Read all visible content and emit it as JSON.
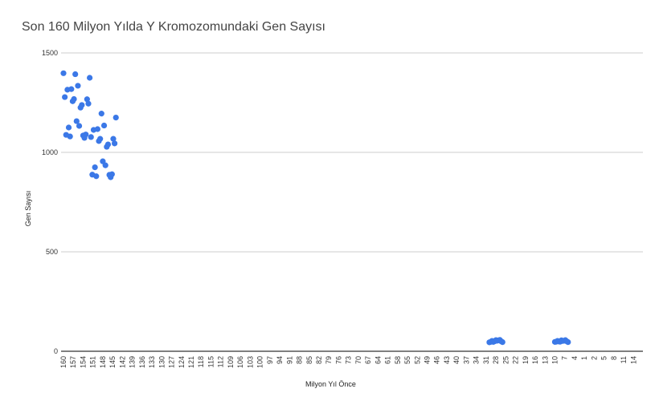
{
  "chart_data": {
    "type": "scatter",
    "title": "Son 160 Milyon Yılda Y Kromozomundaki Gen Sayısı",
    "xlabel": "Milyon Yıl Önce",
    "ylabel": "Gen Sayısı",
    "ylim": [
      0,
      1500
    ],
    "yticks": [
      0,
      500,
      1000,
      1500
    ],
    "grid": true,
    "x_axis_reversed": true,
    "xticks": [
      "160",
      "157",
      "154",
      "151",
      "148",
      "145",
      "142",
      "139",
      "136",
      "133",
      "130",
      "127",
      "124",
      "121",
      "118",
      "115",
      "112",
      "109",
      "106",
      "103",
      "100",
      "97",
      "94",
      "91",
      "88",
      "85",
      "82",
      "79",
      "76",
      "73",
      "70",
      "67",
      "64",
      "61",
      "58",
      "55",
      "52",
      "49",
      "46",
      "43",
      "40",
      "37",
      "34",
      "31",
      "28",
      "25",
      "22",
      "19",
      "16",
      "13",
      "10",
      "7",
      "4",
      "1",
      "2",
      "5",
      "8",
      "11",
      "14"
    ],
    "point_color": "#3b78e7",
    "series": [
      {
        "points": [
          [
            "160",
            1398
          ],
          [
            "159.6",
            1278
          ],
          [
            "159.2",
            1088
          ],
          [
            "158.8",
            1315
          ],
          [
            "158.4",
            1125
          ],
          [
            "158",
            1080
          ],
          [
            "157.6",
            1318
          ],
          [
            "157.2",
            1257
          ],
          [
            "156.8",
            1268
          ],
          [
            "156.4",
            1393
          ],
          [
            "156",
            1157
          ],
          [
            "155.6",
            1335
          ],
          [
            "155.2",
            1133
          ],
          [
            "154.8",
            1225
          ],
          [
            "154.4",
            1238
          ],
          [
            "154",
            1085
          ],
          [
            "153.6",
            1073
          ],
          [
            "153.2",
            1090
          ],
          [
            "152.8",
            1267
          ],
          [
            "152.4",
            1245
          ],
          [
            "152",
            1375
          ],
          [
            "151.6",
            1077
          ],
          [
            "151.2",
            888
          ],
          [
            "150.8",
            1113
          ],
          [
            "150.4",
            925
          ],
          [
            "150",
            880
          ],
          [
            "149.6",
            1117
          ],
          [
            "149.2",
            1057
          ],
          [
            "148.8",
            1068
          ],
          [
            "148.4",
            1195
          ],
          [
            "148",
            955
          ],
          [
            "147.6",
            1135
          ],
          [
            "147.2",
            935
          ],
          [
            "146.8",
            1028
          ],
          [
            "146.4",
            1040
          ],
          [
            "146",
            887
          ],
          [
            "145.6",
            875
          ],
          [
            "145.2",
            890
          ],
          [
            "144.8",
            1068
          ],
          [
            "144.4",
            1045
          ],
          [
            "144",
            1175
          ],
          [
            "30",
            45
          ],
          [
            "29.6",
            47
          ],
          [
            "29.2",
            52
          ],
          [
            "28.8",
            47
          ],
          [
            "28.4",
            50
          ],
          [
            "28",
            56
          ],
          [
            "27.6",
            53
          ],
          [
            "27.2",
            55
          ],
          [
            "26.8",
            57
          ],
          [
            "26.4",
            50
          ],
          [
            "26",
            46
          ],
          [
            "10",
            47
          ],
          [
            "9.6",
            48
          ],
          [
            "9.2",
            52
          ],
          [
            "8.8",
            49
          ],
          [
            "8.4",
            48
          ],
          [
            "8",
            55
          ],
          [
            "7.6",
            52
          ],
          [
            "7.2",
            53
          ],
          [
            "6.8",
            56
          ],
          [
            "6.4",
            50
          ],
          [
            "6",
            46
          ]
        ]
      }
    ]
  }
}
